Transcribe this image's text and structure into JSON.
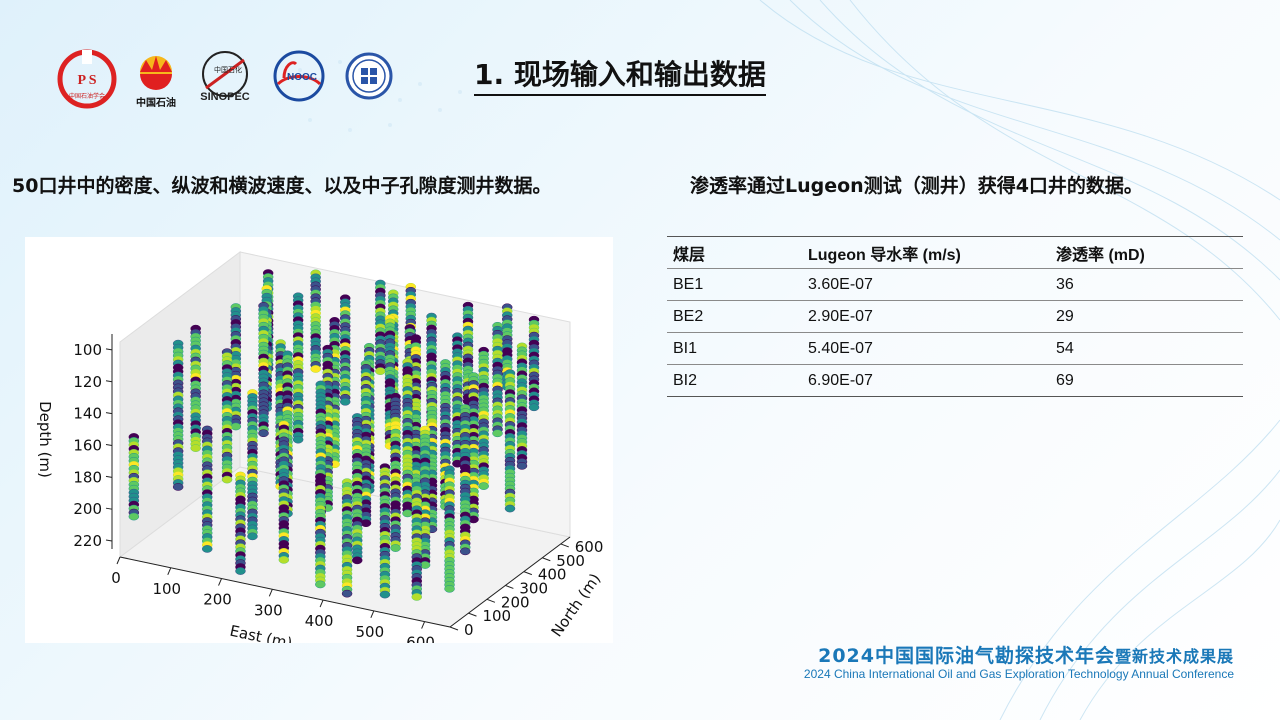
{
  "logos": [
    {
      "name": "cps-logo",
      "text": "P S"
    },
    {
      "name": "cnpc-logo",
      "text": "中国石油"
    },
    {
      "name": "sinopec-logo",
      "text": "SINOPEC"
    },
    {
      "name": "cnooc-logo",
      "text": "NOOC"
    },
    {
      "name": "society-logo",
      "text": ""
    }
  ],
  "slide": {
    "title": "1. 现场输入和输出数据",
    "left_text": "50口井中的密度、纵波和横波速度、以及中子孔隙度测井数据。",
    "right_text": "渗透率通过Lugeon测试（测井）获得4口井的数据。"
  },
  "table": {
    "headers": [
      "煤层",
      "Lugeon 导水率 (m/s)",
      "渗透率 (mD)"
    ],
    "rows": [
      [
        "BE1",
        "3.60E-07",
        "36"
      ],
      [
        "BE2",
        "2.90E-07",
        "29"
      ],
      [
        "BI1",
        "5.40E-07",
        "54"
      ],
      [
        "BI2",
        "6.90E-07",
        "69"
      ]
    ]
  },
  "conference": {
    "cn_main": "2024中国国际油气勘探技术年会",
    "cn_sub": "暨新技术成果展",
    "en": "2024 China International Oil and Gas Exploration Technology Annual Conference"
  },
  "chart_data": {
    "type": "scatter",
    "title": "",
    "xlabel": "East (m)",
    "ylabel": "North (m)",
    "zlabel": "Depth (m)",
    "x_ticks": [
      "0",
      "100",
      "200",
      "300",
      "400",
      "500",
      "600"
    ],
    "y_ticks": [
      "0",
      "100",
      "200",
      "300",
      "400",
      "500",
      "600"
    ],
    "z_ticks": [
      "100",
      "120",
      "140",
      "160",
      "180",
      "200",
      "220"
    ],
    "xlim": [
      0,
      650
    ],
    "ylim": [
      0,
      650
    ],
    "zlim": [
      90,
      225
    ],
    "colormap": [
      "#440154",
      "#3b528b",
      "#21918c",
      "#5ec962",
      "#b5de2b",
      "#fde725"
    ],
    "wells": [
      {
        "e": 20,
        "n": 20,
        "top": 150,
        "bottom": 200
      },
      {
        "e": 60,
        "n": 150,
        "top": 100,
        "bottom": 190
      },
      {
        "e": 90,
        "n": 380,
        "top": 95,
        "bottom": 170
      },
      {
        "e": 120,
        "n": 250,
        "top": 110,
        "bottom": 190
      },
      {
        "e": 150,
        "n": 60,
        "top": 140,
        "bottom": 215
      },
      {
        "e": 180,
        "n": 470,
        "top": 90,
        "bottom": 180
      },
      {
        "e": 200,
        "n": 320,
        "top": 105,
        "bottom": 195
      },
      {
        "e": 210,
        "n": 140,
        "top": 120,
        "bottom": 210
      },
      {
        "e": 240,
        "n": 560,
        "top": 95,
        "bottom": 160
      },
      {
        "e": 250,
        "n": 220,
        "top": 100,
        "bottom": 200
      },
      {
        "e": 270,
        "n": 420,
        "top": 95,
        "bottom": 185
      },
      {
        "e": 290,
        "n": 90,
        "top": 130,
        "bottom": 215
      },
      {
        "e": 300,
        "n": 300,
        "top": 100,
        "bottom": 200
      },
      {
        "e": 320,
        "n": 600,
        "top": 90,
        "bottom": 160
      },
      {
        "e": 330,
        "n": 180,
        "top": 110,
        "bottom": 205
      },
      {
        "e": 350,
        "n": 500,
        "top": 95,
        "bottom": 175
      },
      {
        "e": 360,
        "n": 360,
        "top": 100,
        "bottom": 190
      },
      {
        "e": 380,
        "n": 40,
        "top": 150,
        "bottom": 220
      },
      {
        "e": 390,
        "n": 260,
        "top": 100,
        "bottom": 200
      },
      {
        "e": 410,
        "n": 560,
        "top": 95,
        "bottom": 165
      },
      {
        "e": 420,
        "n": 130,
        "top": 120,
        "bottom": 210
      },
      {
        "e": 430,
        "n": 420,
        "top": 95,
        "bottom": 185
      },
      {
        "e": 450,
        "n": 320,
        "top": 100,
        "bottom": 195
      },
      {
        "e": 460,
        "n": 620,
        "top": 90,
        "bottom": 150
      },
      {
        "e": 470,
        "n": 200,
        "top": 110,
        "bottom": 205
      },
      {
        "e": 490,
        "n": 480,
        "top": 95,
        "bottom": 175
      },
      {
        "e": 500,
        "n": 60,
        "top": 140,
        "bottom": 220
      },
      {
        "e": 510,
        "n": 360,
        "top": 100,
        "bottom": 190
      },
      {
        "e": 520,
        "n": 260,
        "top": 105,
        "bottom": 195
      },
      {
        "e": 540,
        "n": 560,
        "top": 92,
        "bottom": 160
      },
      {
        "e": 550,
        "n": 140,
        "top": 120,
        "bottom": 205
      },
      {
        "e": 560,
        "n": 430,
        "top": 95,
        "bottom": 180
      },
      {
        "e": 580,
        "n": 320,
        "top": 100,
        "bottom": 190
      },
      {
        "e": 590,
        "n": 620,
        "top": 90,
        "bottom": 145
      },
      {
        "e": 600,
        "n": 220,
        "top": 110,
        "bottom": 200
      },
      {
        "e": 610,
        "n": 500,
        "top": 95,
        "bottom": 170
      },
      {
        "e": 620,
        "n": 80,
        "top": 135,
        "bottom": 210
      },
      {
        "e": 630,
        "n": 380,
        "top": 100,
        "bottom": 185
      },
      {
        "e": 100,
        "n": 520,
        "top": 95,
        "bottom": 170
      },
      {
        "e": 160,
        "n": 620,
        "top": 90,
        "bottom": 150
      },
      {
        "e": 40,
        "n": 300,
        "top": 105,
        "bottom": 180
      },
      {
        "e": 230,
        "n": 20,
        "top": 160,
        "bottom": 220
      },
      {
        "e": 340,
        "n": 640,
        "top": 88,
        "bottom": 140
      },
      {
        "e": 440,
        "n": 20,
        "top": 150,
        "bottom": 222
      },
      {
        "e": 570,
        "n": 40,
        "top": 145,
        "bottom": 215
      },
      {
        "e": 280,
        "n": 640,
        "top": 90,
        "bottom": 145
      },
      {
        "e": 400,
        "n": 470,
        "top": 95,
        "bottom": 180
      },
      {
        "e": 130,
        "n": 420,
        "top": 95,
        "bottom": 175
      },
      {
        "e": 530,
        "n": 640,
        "top": 88,
        "bottom": 140
      },
      {
        "e": 70,
        "n": 610,
        "top": 95,
        "bottom": 155
      }
    ]
  }
}
